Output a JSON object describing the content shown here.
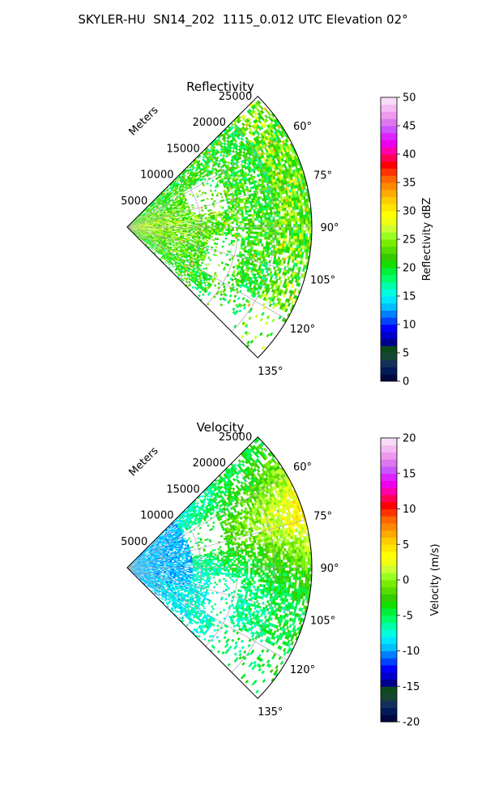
{
  "figure": {
    "title": "SKYLER-HU  SN14_202  1115_0.012 UTC Elevation 02°"
  },
  "chart_data": [
    {
      "type": "heatmap",
      "projection": "polar-sector",
      "title": "Reflectivity",
      "radial_axis_label": "Meters",
      "radial_ticks": [
        5000,
        10000,
        15000,
        20000,
        25000
      ],
      "radial_tick_labels": [
        "5000",
        "10000",
        "15000",
        "20000",
        "25000"
      ],
      "rlim": [
        0,
        25000
      ],
      "angle_ticks": [
        60,
        75,
        90,
        105,
        120,
        135
      ],
      "angle_tick_labels": [
        "60°",
        "75°",
        "90°",
        "105°",
        "120°",
        "135°"
      ],
      "theta_range": [
        45,
        135
      ],
      "grid": true,
      "colorbar": {
        "label": "Reflectivity dBZ",
        "range": [
          0,
          50
        ],
        "ticks": [
          0,
          5,
          10,
          15,
          20,
          25,
          30,
          35,
          40,
          45,
          50
        ],
        "tick_labels": [
          "0",
          "5",
          "10",
          "15",
          "20",
          "25",
          "30",
          "35",
          "40",
          "45",
          "50"
        ],
        "colors": [
          "#00093f",
          "#001a5a",
          "#13305a",
          "#154533",
          "#0c4a1c",
          "#00008b",
          "#0000cd",
          "#0000ff",
          "#0044ff",
          "#007fff",
          "#00bfff",
          "#00e5ff",
          "#00ffdd",
          "#00ffaa",
          "#00ff66",
          "#00f03c",
          "#14e000",
          "#33cc00",
          "#55dd00",
          "#77ee00",
          "#99ff22",
          "#ccff33",
          "#eeff11",
          "#ffff00",
          "#ffe600",
          "#ffcc00",
          "#ffaa00",
          "#ff8800",
          "#ff6600",
          "#ff3300",
          "#ff0000",
          "#ff0055",
          "#ff00aa",
          "#ee00ee",
          "#dd22ff",
          "#cc55ff",
          "#dd77ee",
          "#ee99ee",
          "#f2bbf2",
          "#f7dcf7"
        ]
      },
      "field_value_range": [
        0,
        35
      ]
    },
    {
      "type": "heatmap",
      "projection": "polar-sector",
      "title": "Velocity",
      "radial_axis_label": "Meters",
      "radial_ticks": [
        5000,
        10000,
        15000,
        20000,
        25000
      ],
      "radial_tick_labels": [
        "5000",
        "10000",
        "15000",
        "20000",
        "25000"
      ],
      "rlim": [
        0,
        25000
      ],
      "angle_ticks": [
        60,
        75,
        90,
        105,
        120,
        135
      ],
      "angle_tick_labels": [
        "60°",
        "75°",
        "90°",
        "105°",
        "120°",
        "135°"
      ],
      "theta_range": [
        45,
        135
      ],
      "grid": true,
      "colorbar": {
        "label": "Velocity (m/s)",
        "range": [
          -20,
          20
        ],
        "ticks": [
          -20,
          -15,
          -10,
          -5,
          0,
          5,
          10,
          15,
          20
        ],
        "tick_labels": [
          "-20",
          "-15",
          "-10",
          "-5",
          "0",
          "5",
          "10",
          "15",
          "20"
        ],
        "colors": [
          "#00093f",
          "#001a5a",
          "#13305a",
          "#154533",
          "#0c4a1c",
          "#00008b",
          "#0000cd",
          "#0000ff",
          "#0044ff",
          "#007fff",
          "#00bfff",
          "#00e5ff",
          "#00ffdd",
          "#00ffaa",
          "#00ff66",
          "#00f03c",
          "#14e000",
          "#33cc00",
          "#55dd00",
          "#77ee00",
          "#99ff22",
          "#ccff33",
          "#eeff11",
          "#ffff00",
          "#ffe600",
          "#ffcc00",
          "#ffaa00",
          "#ff8800",
          "#ff6600",
          "#ff3300",
          "#ff0000",
          "#ff0055",
          "#ff00aa",
          "#ee00ee",
          "#dd22ff",
          "#cc55ff",
          "#dd77ee",
          "#ee99ee",
          "#f2bbf2",
          "#f7dcf7"
        ]
      },
      "field_value_range": [
        -12,
        8
      ]
    }
  ]
}
